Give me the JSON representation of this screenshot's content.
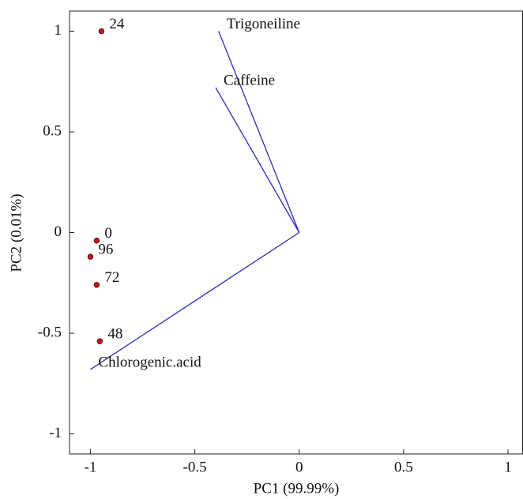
{
  "chart_data": {
    "type": "biplot",
    "xlabel": "PC1 (99.99%)",
    "ylabel": "PC2 (0.01%)",
    "xlim": [
      -1.1,
      1.07
    ],
    "ylim": [
      -1.1,
      1.1
    ],
    "xticks": [
      -1,
      -0.5,
      0,
      0.5,
      1
    ],
    "yticks": [
      -1,
      -0.5,
      0,
      0.5,
      1
    ],
    "series": [
      {
        "labels": [
          "24",
          "0",
          "96",
          "72",
          "48"
        ],
        "x": [
          -0.947,
          -0.97,
          -1.0,
          -0.97,
          -0.955
        ],
        "y": [
          1.0,
          -0.04,
          -0.12,
          -0.26,
          -0.54
        ],
        "color": "#c8161d"
      }
    ],
    "vectors": [
      {
        "name": "Trigoneiline",
        "x": -0.386,
        "y": 1.0
      },
      {
        "name": "Caffeine",
        "x": -0.4,
        "y": 0.72
      },
      {
        "name": "Chlorogenic.acid",
        "x": -1.0,
        "y": -0.68
      }
    ],
    "vector_color": "#2a2ab8"
  }
}
